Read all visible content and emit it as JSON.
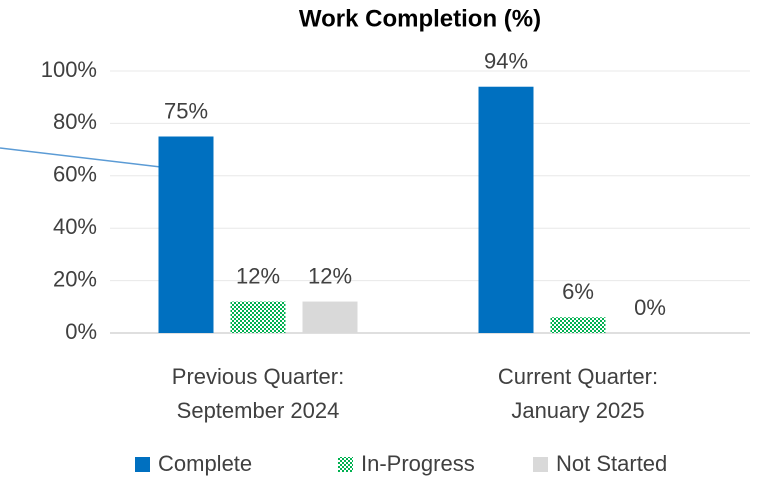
{
  "chart_data": {
    "type": "bar",
    "title": "Work Completion (%)",
    "categories": [
      "Previous Quarter:\nSeptember 2024",
      "Current Quarter:\nJanuary 2025"
    ],
    "series": [
      {
        "name": "Complete",
        "color": "#0070c0",
        "values": [
          75,
          94
        ],
        "value_labels": [
          "75%",
          "94%"
        ]
      },
      {
        "name": "In-Progress",
        "color": "#00b050",
        "pattern": "checker",
        "values": [
          12,
          6
        ],
        "value_labels": [
          "12%",
          "6%"
        ]
      },
      {
        "name": "Not Started",
        "color": "#d9d9d9",
        "values": [
          12,
          0
        ],
        "value_labels": [
          "12%",
          "0%"
        ]
      }
    ],
    "ylim": [
      0,
      100
    ],
    "yticks": [
      {
        "value": 0,
        "label": "0%"
      },
      {
        "value": 20,
        "label": "20%"
      },
      {
        "value": 40,
        "label": "40%"
      },
      {
        "value": 60,
        "label": "60%"
      },
      {
        "value": 80,
        "label": "80%"
      },
      {
        "value": 100,
        "label": "100%"
      }
    ],
    "grid": true,
    "legend": "bottom"
  }
}
